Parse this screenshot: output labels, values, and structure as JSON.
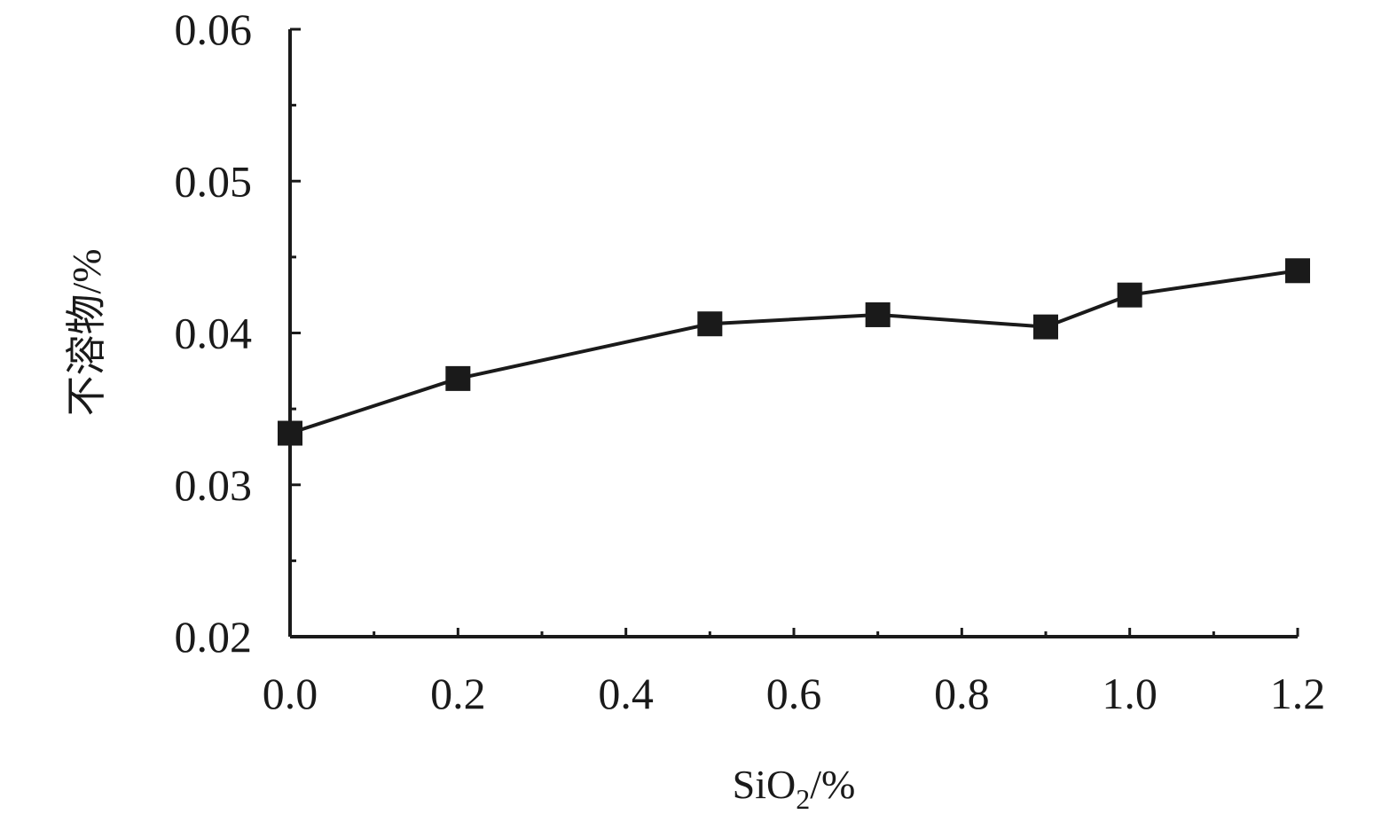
{
  "chart_data": {
    "type": "line",
    "xlabel": {
      "main": "SiO",
      "sub": "2",
      "suffix": "/%"
    },
    "ylabel": "不溶物/%",
    "xlim": [
      0.0,
      1.2
    ],
    "ylim": [
      0.02,
      0.06
    ],
    "x_ticks": [
      0.0,
      0.2,
      0.4,
      0.6,
      0.8,
      1.0,
      1.2
    ],
    "x_tick_labels": [
      "0.0",
      "0.2",
      "0.4",
      "0.6",
      "0.8",
      "1.0",
      "1.2"
    ],
    "y_ticks": [
      0.02,
      0.03,
      0.04,
      0.05,
      0.06
    ],
    "y_tick_labels": [
      "0.02",
      "0.03",
      "0.04",
      "0.05",
      "0.06"
    ],
    "x_minor_ticks": [
      0.1,
      0.3,
      0.5,
      0.7,
      0.9,
      1.1
    ],
    "y_minor_ticks": [
      0.025,
      0.035,
      0.045,
      0.055
    ],
    "grid": false,
    "series": [
      {
        "marker": "square",
        "color": "#1a1a1a",
        "x": [
          0.0,
          0.2,
          0.5,
          0.7,
          0.9,
          1.0,
          1.2
        ],
        "y": [
          0.0334,
          0.037,
          0.0406,
          0.0412,
          0.0404,
          0.0425,
          0.0441
        ]
      }
    ]
  }
}
